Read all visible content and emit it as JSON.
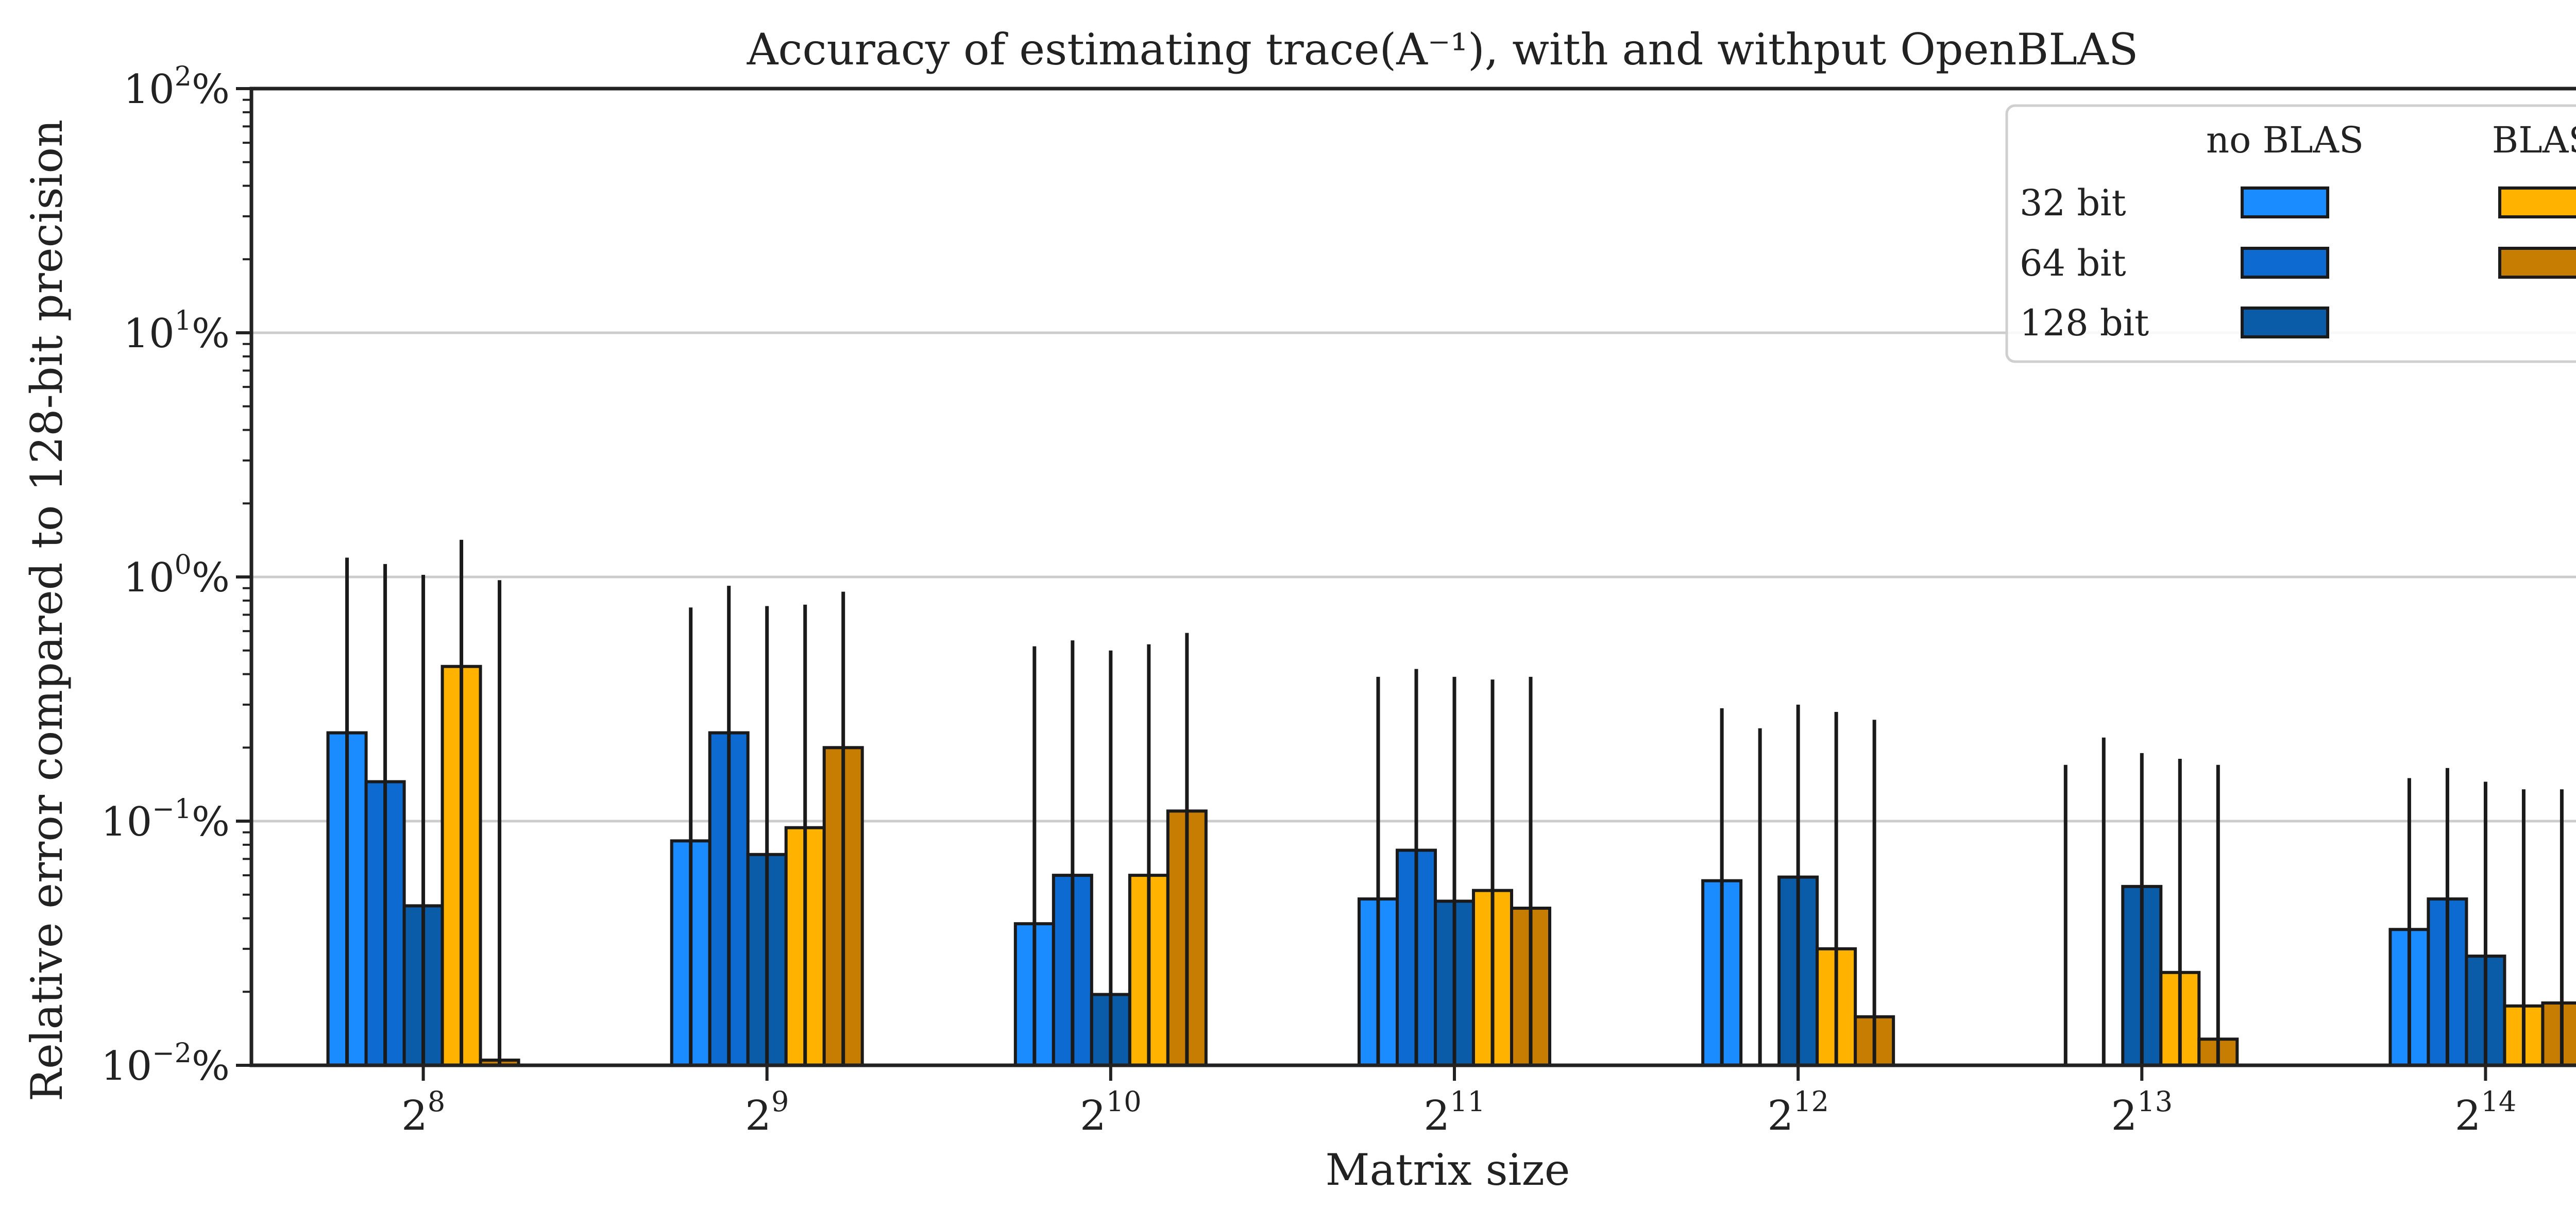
{
  "chart_data": {
    "type": "bar",
    "title": "Accuracy of estimating trace(A⁻¹), with and withput OpenBLAS",
    "xlabel": "Matrix size",
    "ylabel": "Relative error compared to 128-bit precision",
    "yscale": "log",
    "ylim": [
      0.01,
      100
    ],
    "yticks": [
      {
        "value": 0.01,
        "base": "10",
        "exp": "−2",
        "unit": "%"
      },
      {
        "value": 0.1,
        "base": "10",
        "exp": "−1",
        "unit": "%"
      },
      {
        "value": 1,
        "base": "10",
        "exp": "0",
        "unit": "%"
      },
      {
        "value": 10,
        "base": "10",
        "exp": "1",
        "unit": "%"
      },
      {
        "value": 100,
        "base": "10",
        "exp": "2",
        "unit": "%"
      }
    ],
    "grid": "horizontal at major ticks",
    "legend_position": "top-right",
    "legend": {
      "column_headers": [
        "no BLAS",
        "BLAS"
      ],
      "row_labels": [
        "32 bit",
        "64 bit",
        "128 bit"
      ]
    },
    "categories": [
      {
        "base": "2",
        "exp": "8"
      },
      {
        "base": "2",
        "exp": "9"
      },
      {
        "base": "2",
        "exp": "10"
      },
      {
        "base": "2",
        "exp": "11"
      },
      {
        "base": "2",
        "exp": "12"
      },
      {
        "base": "2",
        "exp": "13"
      },
      {
        "base": "2",
        "exp": "14"
      }
    ],
    "series": [
      {
        "name": "no BLAS 32 bit",
        "color": "#1a8cff",
        "values": [
          0.23,
          0.083,
          0.038,
          0.048,
          0.057,
          null,
          0.036
        ],
        "error_upper": [
          1.2,
          0.75,
          0.52,
          0.39,
          0.29,
          0.17,
          0.15
        ]
      },
      {
        "name": "no BLAS 64 bit",
        "color": "#0d6ad0",
        "values": [
          0.145,
          0.23,
          0.06,
          0.076,
          null,
          null,
          0.048
        ],
        "error_upper": [
          1.13,
          0.92,
          0.55,
          0.42,
          0.24,
          0.22,
          0.165
        ]
      },
      {
        "name": "no BLAS 128 bit",
        "color": "#0a5ca8",
        "values": [
          0.045,
          0.073,
          0.0195,
          0.047,
          0.059,
          0.054,
          0.028
        ],
        "error_upper": [
          1.02,
          0.76,
          0.5,
          0.39,
          0.3,
          0.19,
          0.145
        ]
      },
      {
        "name": "BLAS 32 bit",
        "color": "#ffb300",
        "values": [
          0.43,
          0.094,
          0.06,
          0.052,
          0.03,
          0.024,
          0.0175
        ],
        "error_upper": [
          1.42,
          0.77,
          0.53,
          0.38,
          0.28,
          0.18,
          0.135
        ]
      },
      {
        "name": "BLAS 64 bit",
        "color": "#c77c02",
        "values": [
          0.0105,
          0.2,
          0.11,
          0.044,
          0.0158,
          0.0128,
          0.018
        ],
        "error_upper": [
          0.97,
          0.87,
          0.59,
          0.39,
          0.26,
          0.17,
          0.135
        ]
      }
    ]
  }
}
